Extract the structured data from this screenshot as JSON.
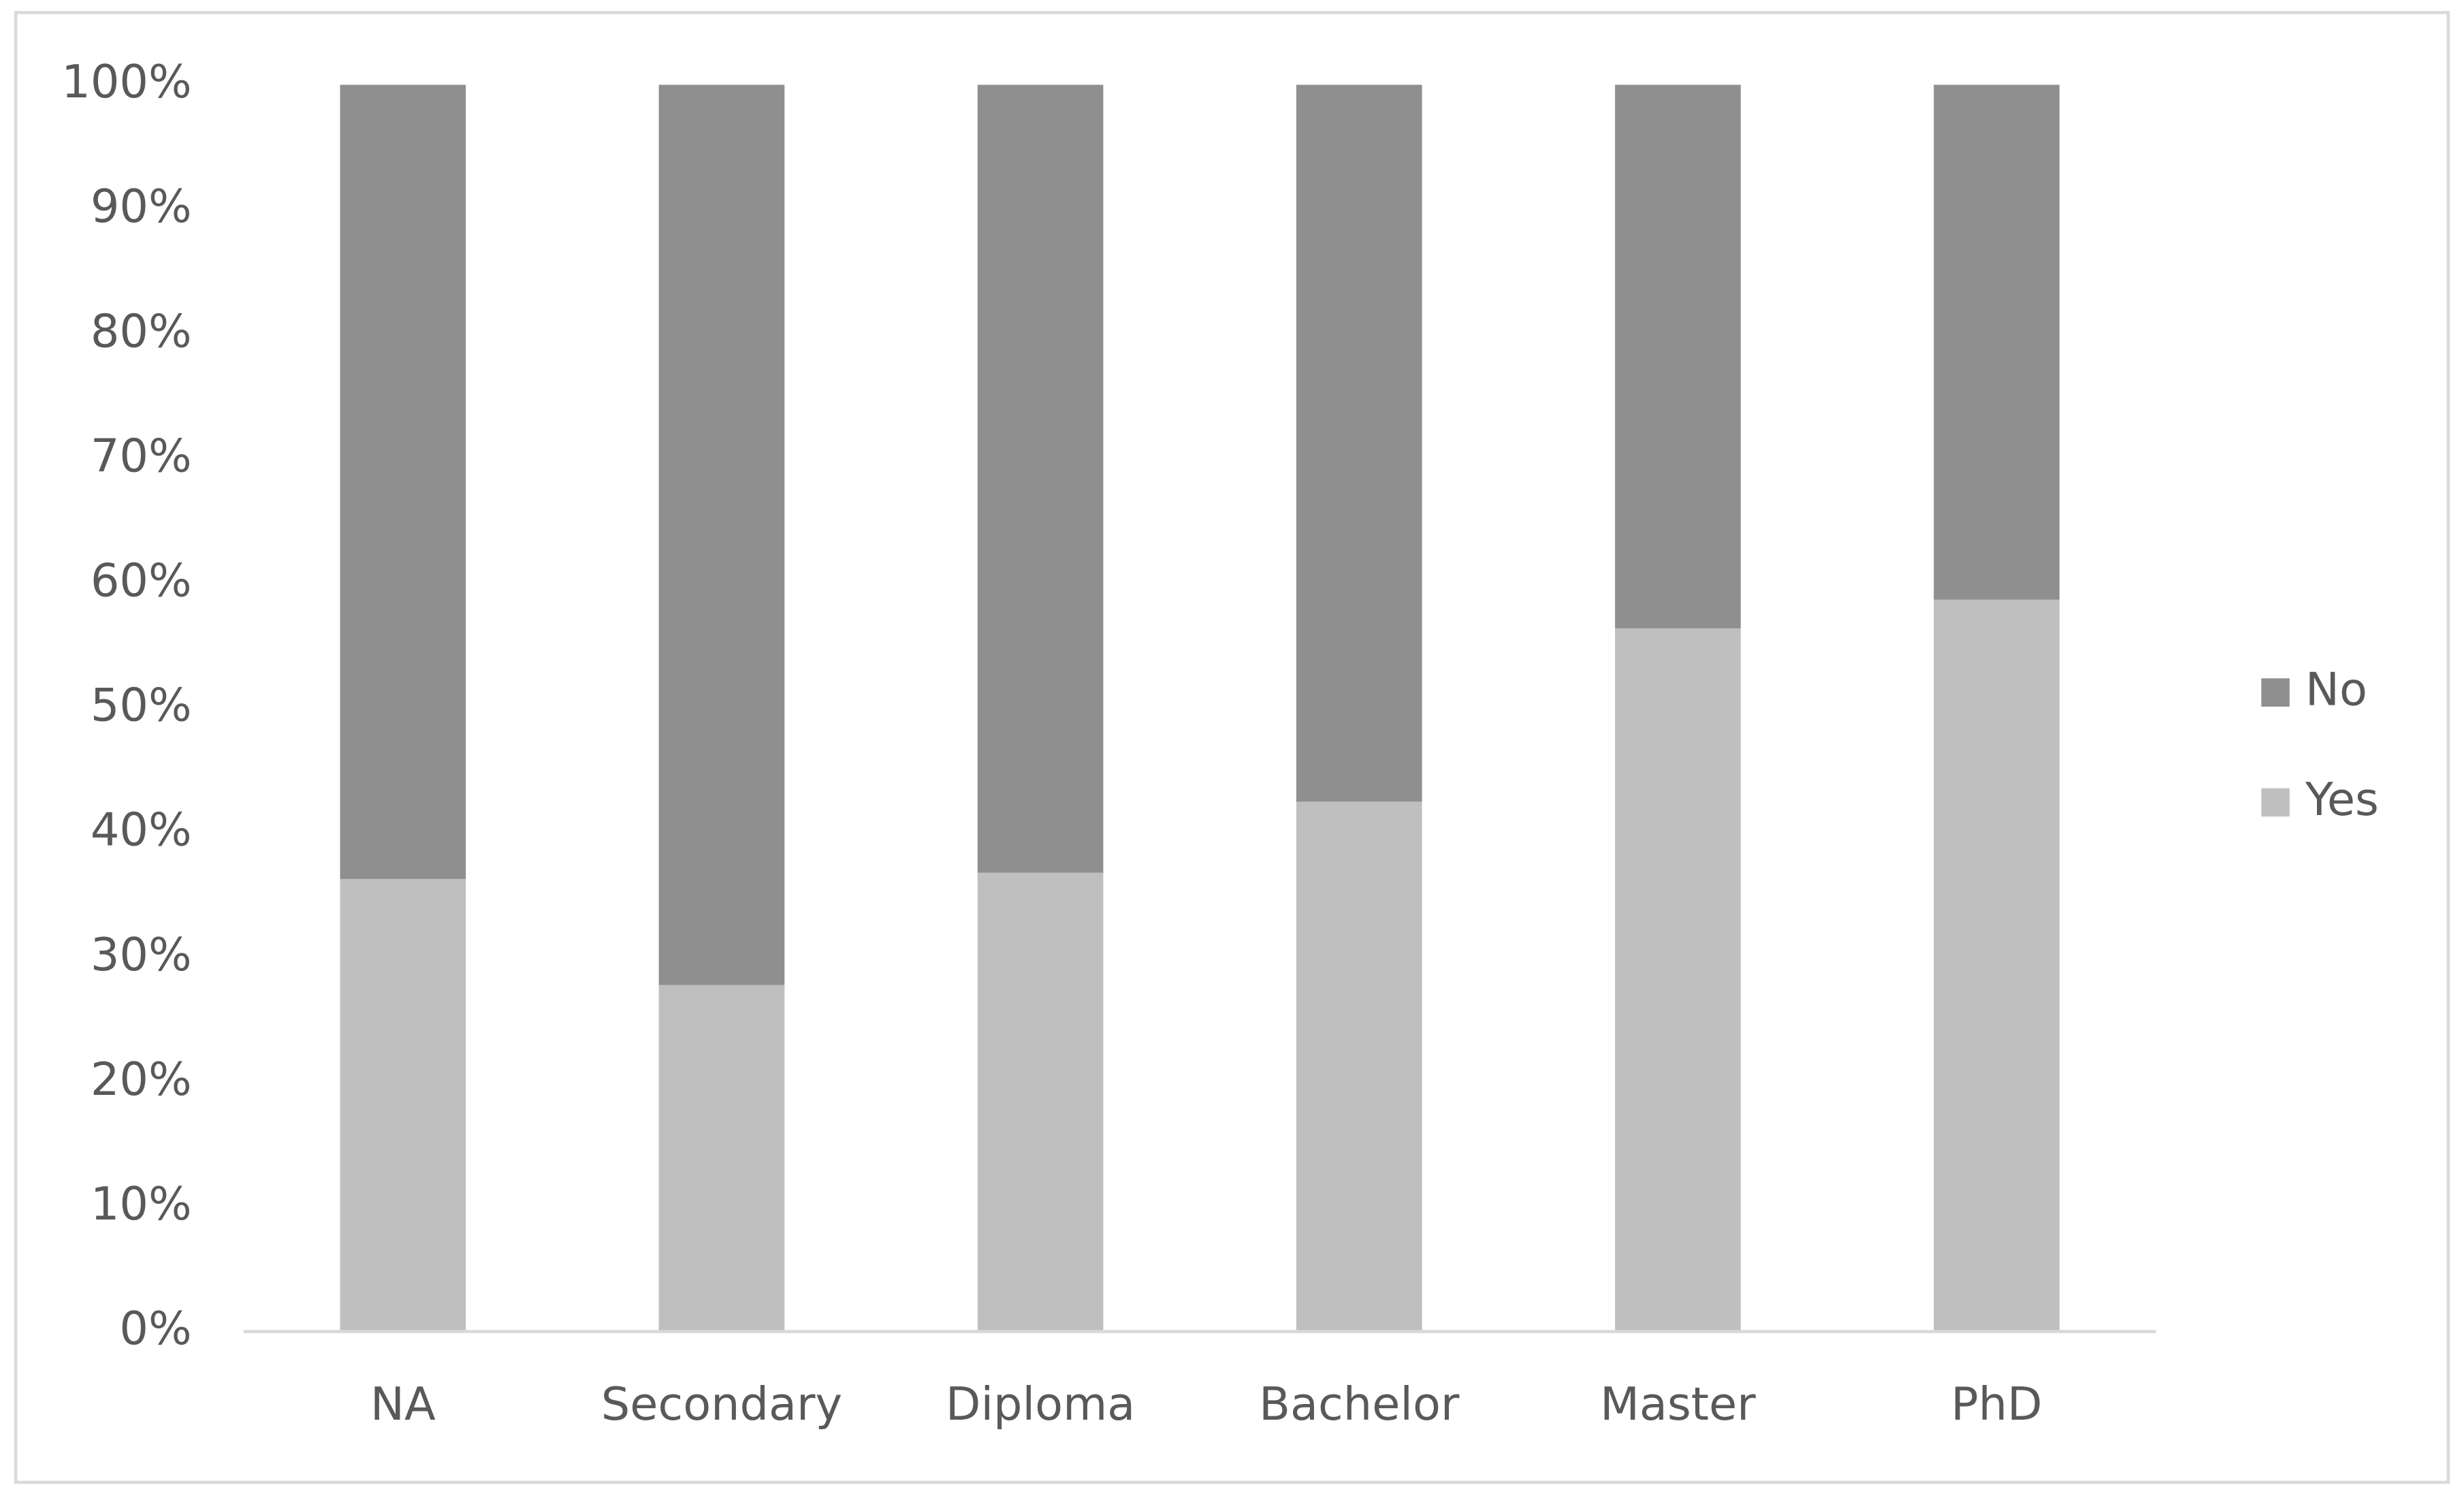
{
  "chart_data": {
    "type": "stacked_bar",
    "categories": [
      "NA",
      "Secondary",
      "Diploma",
      "Bachelor",
      "Master",
      "PhD"
    ],
    "series": [
      {
        "name": "Yes",
        "color": "#bfbfbf",
        "values": [
          36.3,
          27.8,
          36.8,
          42.5,
          56.4,
          58.7
        ]
      },
      {
        "name": "No",
        "color": "#8f8f8f",
        "values": [
          63.7,
          72.2,
          63.2,
          57.5,
          43.6,
          41.3
        ]
      }
    ],
    "ylim": [
      0,
      100
    ],
    "yticks": [
      {
        "value": 0,
        "label": "0%"
      },
      {
        "value": 10,
        "label": "10%"
      },
      {
        "value": 20,
        "label": "20%"
      },
      {
        "value": 30,
        "label": "30%"
      },
      {
        "value": 40,
        "label": "40%"
      },
      {
        "value": 50,
        "label": "50%"
      },
      {
        "value": 60,
        "label": "60%"
      },
      {
        "value": 70,
        "label": "70%"
      },
      {
        "value": 80,
        "label": "80%"
      },
      {
        "value": 90,
        "label": "90%"
      },
      {
        "value": 100,
        "label": "100%"
      }
    ],
    "legend": "right"
  }
}
